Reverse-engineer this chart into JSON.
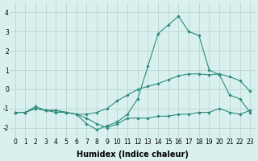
{
  "xlabel": "Humidex (Indice chaleur)",
  "x_values": [
    0,
    1,
    2,
    3,
    4,
    5,
    6,
    7,
    8,
    9,
    10,
    11,
    12,
    13,
    14,
    15,
    16,
    17,
    18,
    19,
    20,
    21,
    22,
    23
  ],
  "line1": [
    -1.2,
    -1.2,
    -0.9,
    -1.1,
    -1.1,
    -1.2,
    -1.3,
    -1.3,
    -1.2,
    -1.0,
    -0.6,
    -0.3,
    0.0,
    0.15,
    0.3,
    0.5,
    0.7,
    0.8,
    0.8,
    0.75,
    0.8,
    0.65,
    0.45,
    -0.1
  ],
  "line2": [
    -1.2,
    -1.2,
    -1.0,
    -1.1,
    -1.1,
    -1.2,
    -1.3,
    -1.8,
    -2.1,
    -1.9,
    -1.7,
    -1.3,
    -0.5,
    1.2,
    2.9,
    3.35,
    3.8,
    3.0,
    2.8,
    1.0,
    0.75,
    -0.3,
    -0.5,
    -1.2
  ],
  "line3": [
    -1.2,
    -1.2,
    -1.0,
    -1.1,
    -1.2,
    -1.2,
    -1.3,
    -1.5,
    -1.8,
    -2.0,
    -1.8,
    -1.5,
    -1.5,
    -1.5,
    -1.4,
    -1.4,
    -1.3,
    -1.3,
    -1.2,
    -1.2,
    -1.0,
    -1.2,
    -1.3,
    -1.1
  ],
  "line_color": "#2e8b7a",
  "bg_color": "#d8f0ee",
  "grid_color": "#b5d0cc",
  "ylim": [
    -2.5,
    4.5
  ],
  "xlim": [
    -0.5,
    23.5
  ],
  "yticks": [
    -2,
    -1,
    0,
    1,
    2,
    3,
    4
  ],
  "xticks": [
    0,
    1,
    2,
    3,
    4,
    5,
    6,
    7,
    8,
    9,
    10,
    11,
    12,
    13,
    14,
    15,
    16,
    17,
    18,
    19,
    20,
    21,
    22,
    23
  ],
  "tick_fontsize": 5.5,
  "label_fontsize": 7.0
}
